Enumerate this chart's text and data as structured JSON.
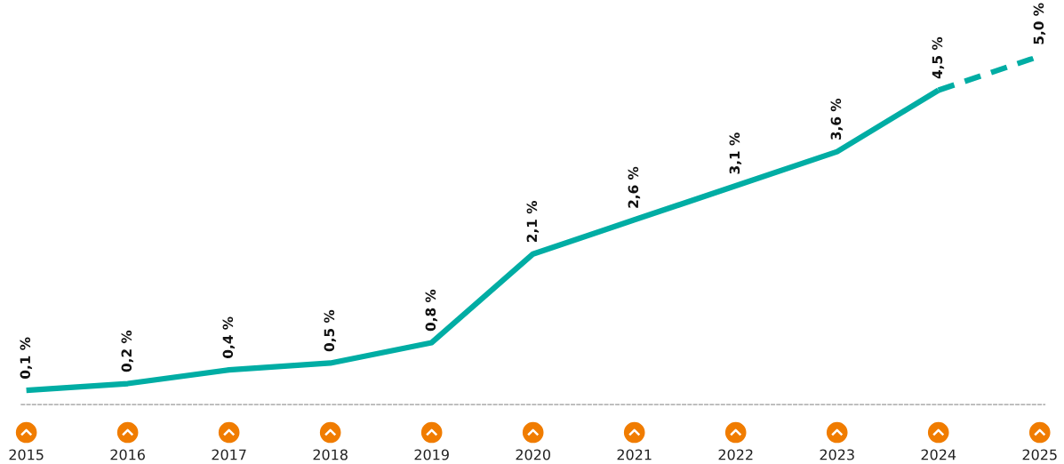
{
  "chart_data": {
    "type": "line",
    "categories": [
      "2015",
      "2016",
      "2017",
      "2018",
      "2019",
      "2020",
      "2021",
      "2022",
      "2023",
      "2024",
      "2025"
    ],
    "series": [
      {
        "color": "#00ada4",
        "line_style": "solid",
        "values": [
          0.1,
          0.2,
          0.4,
          0.5,
          0.8,
          2.1,
          2.6,
          3.1,
          3.6,
          4.5,
          null
        ],
        "value_labels": [
          "0,1 %",
          "0,2 %",
          "0,4 %",
          "0,5 %",
          "0,8 %",
          "2,1 %",
          "2,6 %",
          "3,1 %",
          "3,6 %",
          "4,5 %",
          null
        ]
      },
      {
        "color": "#00ada4",
        "line_style": "dashed",
        "values": [
          null,
          null,
          null,
          null,
          null,
          null,
          null,
          null,
          null,
          4.5,
          5.0
        ],
        "value_labels": [
          null,
          null,
          null,
          null,
          null,
          null,
          null,
          null,
          null,
          null,
          "5,0 %"
        ]
      }
    ],
    "grid": false,
    "marker": "none"
  }
}
